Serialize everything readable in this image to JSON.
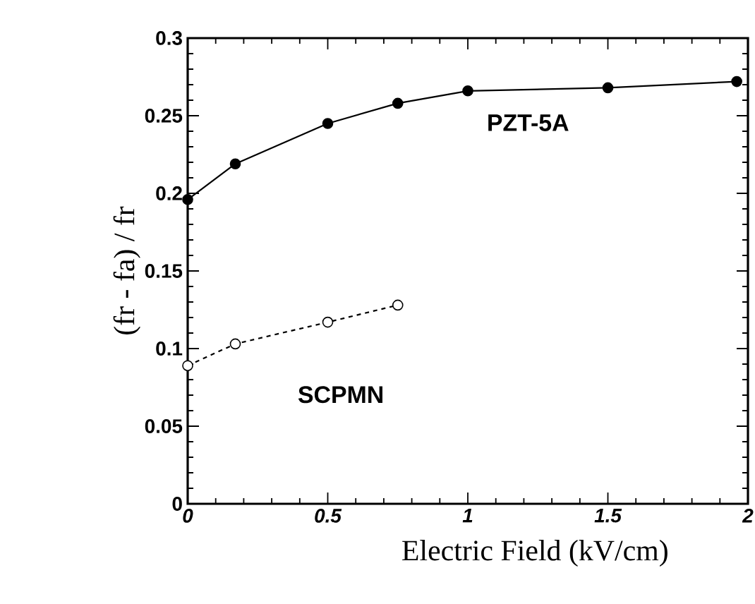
{
  "chart_data": {
    "type": "line",
    "xlabel": "Electric Field (kV/cm)",
    "ylabel": "(fr - fa) / fr",
    "xlim": [
      0,
      2
    ],
    "xticks": [
      0,
      0.5,
      1,
      1.5,
      2
    ],
    "ylim": [
      0,
      0.3
    ],
    "yticks": [
      0,
      0.05,
      0.1,
      0.15,
      0.2,
      0.25,
      0.3
    ],
    "marker": "circle",
    "grid": false,
    "legend": false,
    "series": [
      {
        "name": "PZT-5A",
        "color": "#000000",
        "line_style": "solid",
        "x": [
          0,
          0.17,
          0.5,
          0.75,
          1,
          1.5,
          1.96
        ],
        "values": [
          0.196,
          0.219,
          0.245,
          0.258,
          0.266,
          0.268,
          0.272
        ]
      },
      {
        "name": "SCPMN",
        "color": "#000000",
        "line_style": "dashed",
        "x": [
          0,
          0.17,
          0.5,
          0.75
        ],
        "values": [
          0.089,
          0.103,
          0.117,
          0.128
        ]
      }
    ]
  }
}
